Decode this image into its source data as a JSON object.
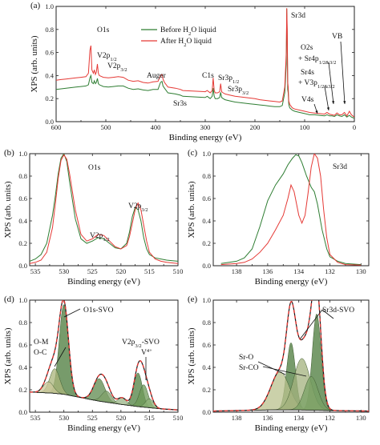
{
  "chart_data": [
    {
      "panel": "(a)",
      "type": "line",
      "xlabel": "Binding energy (eV)",
      "ylabel": "XPS (arb. units)",
      "xlim": [
        600,
        0
      ],
      "ylim": [
        0.0,
        1.0
      ],
      "xticks": [
        "600",
        "500",
        "400",
        "300",
        "200",
        "100",
        "0"
      ],
      "yticks": [
        "0.0",
        "0.2",
        "0.4",
        "0.6",
        "0.8",
        "1.0"
      ],
      "legend": {
        "placement": "top-center",
        "entries": [
          "Before H₂O liquid",
          "After H₂O liquid"
        ]
      },
      "annotations": [
        "O1s",
        "V2p1/2",
        "V2p3/2",
        "Auger",
        "Sr3s",
        "C1s",
        "Sr3p1/2",
        "Sr3p3/2",
        "Sr3d",
        "O2s + Sr4p1/2&3/2",
        "Sr4s + V3p1/2&3/2",
        "V4s",
        "VB"
      ],
      "series": [
        {
          "name": "Before H₂O liquid",
          "color": "#2e7d32",
          "x": [
            600,
            590,
            580,
            570,
            560,
            550,
            540,
            535,
            532,
            530,
            528,
            525,
            523,
            521,
            519,
            517,
            515,
            513,
            505,
            495,
            485,
            475,
            465,
            455,
            445,
            435,
            425,
            415,
            405,
            395,
            390,
            387,
            385,
            382,
            375,
            360,
            350,
            345,
            300,
            296,
            290,
            286,
            284,
            282,
            280,
            275,
            271,
            269,
            267,
            264,
            260,
            250,
            240,
            230,
            220,
            210,
            200,
            190,
            180,
            170,
            160,
            150,
            145,
            140,
            137,
            136,
            135,
            134,
            133,
            132,
            130,
            125,
            120,
            110,
            100,
            90,
            80,
            70,
            60,
            55,
            50,
            45,
            40,
            35,
            30,
            25,
            20,
            15,
            10,
            6,
            3,
            0
          ],
          "y": [
            0.28,
            0.285,
            0.29,
            0.295,
            0.3,
            0.305,
            0.31,
            0.32,
            0.38,
            0.4,
            0.34,
            0.33,
            0.355,
            0.33,
            0.34,
            0.375,
            0.33,
            0.32,
            0.305,
            0.3,
            0.305,
            0.31,
            0.31,
            0.29,
            0.28,
            0.285,
            0.275,
            0.27,
            0.28,
            0.28,
            0.34,
            0.35,
            0.31,
            0.29,
            0.25,
            0.24,
            0.23,
            0.22,
            0.21,
            0.22,
            0.2,
            0.22,
            0.29,
            0.22,
            0.2,
            0.2,
            0.21,
            0.255,
            0.21,
            0.2,
            0.19,
            0.18,
            0.17,
            0.165,
            0.16,
            0.155,
            0.15,
            0.145,
            0.14,
            0.135,
            0.13,
            0.13,
            0.14,
            0.25,
            0.5,
            0.98,
            0.72,
            0.28,
            0.25,
            0.15,
            0.12,
            0.1,
            0.09,
            0.08,
            0.07,
            0.06,
            0.06,
            0.055,
            0.05,
            0.06,
            0.05,
            0.05,
            0.045,
            0.06,
            0.05,
            0.045,
            0.06,
            0.04,
            0.055,
            0.04,
            0.035,
            0.03
          ]
        },
        {
          "name": "After H₂O liquid",
          "color": "#e53935",
          "x": [
            600,
            590,
            580,
            570,
            560,
            550,
            540,
            535,
            532,
            530,
            528,
            525,
            523,
            521,
            519,
            517,
            515,
            513,
            505,
            495,
            485,
            475,
            465,
            455,
            445,
            435,
            425,
            415,
            405,
            395,
            390,
            387,
            385,
            382,
            375,
            360,
            350,
            345,
            300,
            296,
            290,
            286,
            284,
            282,
            280,
            275,
            271,
            269,
            267,
            264,
            260,
            250,
            240,
            230,
            220,
            210,
            200,
            190,
            180,
            170,
            160,
            150,
            145,
            140,
            137,
            136,
            135,
            134,
            133,
            132,
            130,
            125,
            120,
            110,
            100,
            90,
            80,
            70,
            60,
            55,
            50,
            45,
            40,
            35,
            30,
            25,
            20,
            15,
            10,
            6,
            3,
            0
          ],
          "y": [
            0.36,
            0.365,
            0.37,
            0.375,
            0.38,
            0.385,
            0.39,
            0.42,
            0.62,
            0.66,
            0.45,
            0.42,
            0.45,
            0.41,
            0.43,
            0.5,
            0.42,
            0.4,
            0.385,
            0.38,
            0.385,
            0.39,
            0.385,
            0.36,
            0.35,
            0.355,
            0.34,
            0.335,
            0.345,
            0.35,
            0.4,
            0.41,
            0.37,
            0.34,
            0.3,
            0.29,
            0.28,
            0.27,
            0.26,
            0.27,
            0.25,
            0.27,
            0.38,
            0.27,
            0.25,
            0.25,
            0.26,
            0.33,
            0.26,
            0.25,
            0.24,
            0.23,
            0.22,
            0.215,
            0.21,
            0.205,
            0.2,
            0.19,
            0.185,
            0.18,
            0.175,
            0.17,
            0.18,
            0.3,
            0.6,
            0.985,
            0.8,
            0.34,
            0.3,
            0.18,
            0.15,
            0.12,
            0.11,
            0.1,
            0.09,
            0.08,
            0.075,
            0.07,
            0.065,
            0.08,
            0.065,
            0.06,
            0.055,
            0.075,
            0.06,
            0.06,
            0.08,
            0.05,
            0.09,
            0.06,
            0.05,
            0.04
          ]
        }
      ]
    },
    {
      "panel": "(b)",
      "type": "line",
      "xlabel": "Binding energy (eV)",
      "ylabel": "XPS (arb. units)",
      "xlim": [
        536,
        510
      ],
      "ylim": [
        0.0,
        1.0
      ],
      "xticks": [
        "535",
        "530",
        "525",
        "520",
        "515",
        "510"
      ],
      "yticks": [
        "0.0",
        "0.2",
        "0.4",
        "0.6",
        "0.8",
        "1.0"
      ],
      "annotations": [
        "O1s",
        "V2p3/2",
        "V2p1/2"
      ],
      "series": [
        {
          "name": "Before H₂O liquid",
          "color": "#2e7d32",
          "x": [
            536,
            535,
            534,
            533,
            532,
            531.5,
            531,
            530.5,
            530,
            529.5,
            529,
            528,
            527,
            526,
            525,
            524,
            523,
            522,
            521,
            520,
            519,
            518.5,
            518,
            517.5,
            517,
            516.5,
            516,
            515.5,
            515,
            514,
            513,
            512,
            511,
            510
          ],
          "y": [
            0.04,
            0.06,
            0.1,
            0.2,
            0.45,
            0.62,
            0.82,
            0.96,
            1.0,
            0.93,
            0.75,
            0.42,
            0.24,
            0.2,
            0.22,
            0.25,
            0.24,
            0.2,
            0.16,
            0.15,
            0.2,
            0.3,
            0.44,
            0.52,
            0.5,
            0.4,
            0.25,
            0.15,
            0.1,
            0.07,
            0.06,
            0.05,
            0.045,
            0.04
          ]
        },
        {
          "name": "After H₂O liquid",
          "color": "#e53935",
          "x": [
            536,
            535,
            534,
            533,
            532,
            531.5,
            531,
            530.5,
            530,
            529.5,
            529,
            528,
            527,
            526,
            525,
            524,
            523,
            522,
            521,
            520,
            519,
            518.5,
            518,
            517.5,
            517,
            516.5,
            516,
            515.5,
            515,
            514,
            513,
            512,
            511,
            510
          ],
          "y": [
            0.02,
            0.03,
            0.05,
            0.12,
            0.34,
            0.55,
            0.78,
            0.94,
            0.99,
            0.95,
            0.82,
            0.5,
            0.28,
            0.22,
            0.24,
            0.28,
            0.27,
            0.22,
            0.17,
            0.15,
            0.18,
            0.26,
            0.38,
            0.5,
            0.56,
            0.5,
            0.36,
            0.22,
            0.12,
            0.06,
            0.04,
            0.03,
            0.025,
            0.02
          ]
        }
      ]
    },
    {
      "panel": "(c)",
      "type": "line",
      "xlabel": "Binding energy (eV)",
      "ylabel": "XPS (arb. units)",
      "xlim": [
        139.5,
        129.5
      ],
      "ylim": [
        0.0,
        1.0
      ],
      "xticks": [
        "138",
        "136",
        "134",
        "132",
        "130"
      ],
      "yticks": [
        "0.0",
        "0.2",
        "0.4",
        "0.6",
        "0.8",
        "1.0"
      ],
      "annotations": [
        "Sr3d"
      ],
      "series": [
        {
          "name": "Before H₂O liquid",
          "color": "#2e7d32",
          "x": [
            139,
            138,
            137.5,
            137,
            136.5,
            136,
            135.5,
            135,
            134.7,
            134.4,
            134.2,
            134,
            133.8,
            133.5,
            133.2,
            133,
            132.8,
            132.5,
            132.2,
            132,
            131.5,
            131,
            130
          ],
          "y": [
            0.02,
            0.04,
            0.07,
            0.15,
            0.35,
            0.58,
            0.72,
            0.82,
            0.9,
            0.96,
            0.99,
            0.98,
            0.92,
            0.8,
            0.7,
            0.66,
            0.55,
            0.32,
            0.15,
            0.08,
            0.04,
            0.02,
            0.01
          ]
        },
        {
          "name": "After H₂O liquid",
          "color": "#e53935",
          "x": [
            139,
            138,
            137.5,
            137,
            136.5,
            136,
            135.5,
            135,
            134.7,
            134.5,
            134.3,
            134,
            133.8,
            133.6,
            133.4,
            133.2,
            133,
            132.8,
            132.6,
            132.4,
            132.2,
            132,
            131.5,
            131,
            130
          ],
          "y": [
            0.01,
            0.02,
            0.03,
            0.06,
            0.12,
            0.2,
            0.32,
            0.45,
            0.6,
            0.72,
            0.66,
            0.45,
            0.38,
            0.45,
            0.65,
            0.88,
            1.0,
            0.96,
            0.8,
            0.5,
            0.25,
            0.1,
            0.03,
            0.01,
            0.005
          ]
        }
      ]
    },
    {
      "panel": "(d)",
      "type": "area",
      "xlabel": "Binding energy (eV)",
      "ylabel": "XPS (arb. units)",
      "xlim": [
        536,
        510
      ],
      "ylim": [
        0.0,
        1.0
      ],
      "xticks": [
        "535",
        "530",
        "525",
        "520",
        "515",
        "510"
      ],
      "yticks": [
        "0.0",
        "0.2",
        "0.4",
        "0.6",
        "0.8",
        "1.0"
      ],
      "annotations": [
        "O1s-SVO",
        "O-M",
        "O-C",
        "V2p3/2-SVO",
        "V4+"
      ],
      "background": {
        "x": [
          536,
          532,
          530,
          528,
          524,
          520,
          517,
          515,
          513,
          510
        ],
        "y": [
          0.18,
          0.17,
          0.16,
          0.14,
          0.1,
          0.07,
          0.05,
          0.04,
          0.03,
          0.02
        ]
      },
      "peaks": [
        {
          "center": 530.0,
          "height": 0.8,
          "width": 1.3,
          "color": "#4a7a3a"
        },
        {
          "center": 531.6,
          "height": 0.22,
          "width": 1.4,
          "color": "#a9b47a"
        },
        {
          "center": 532.7,
          "height": 0.1,
          "width": 1.4,
          "color": "#c9c79a"
        },
        {
          "center": 523.8,
          "height": 0.2,
          "width": 1.6,
          "color": "#5e8a4e"
        },
        {
          "center": 522.5,
          "height": 0.1,
          "width": 1.4,
          "color": "#7fa06a"
        },
        {
          "center": 517.0,
          "height": 0.3,
          "width": 1.2,
          "color": "#4f8040"
        },
        {
          "center": 516.0,
          "height": 0.2,
          "width": 1.2,
          "color": "#6e9a58"
        },
        {
          "center": 515.0,
          "height": 0.08,
          "width": 1.1,
          "color": "#8db178"
        },
        {
          "center": 519.8,
          "height": 0.06,
          "width": 1.2,
          "color": "#9ab486"
        }
      ]
    },
    {
      "panel": "(e)",
      "type": "area",
      "xlabel": "Binding energy (eV)",
      "ylabel": "XPS (arb. units)",
      "xlim": [
        139.5,
        129.5
      ],
      "ylim": [
        0.0,
        1.0
      ],
      "xticks": [
        "138",
        "136",
        "134",
        "132",
        "130"
      ],
      "yticks": [
        "0.0",
        "0.2",
        "0.4",
        "0.6",
        "0.8",
        "1.0"
      ],
      "annotations": [
        "Sr3d-SVO",
        "Sr-O",
        "Sr-CO"
      ],
      "background": {
        "x": [
          139.5,
          136,
          134,
          132,
          129.5
        ],
        "y": [
          0.01,
          0.02,
          0.02,
          0.015,
          0.01
        ]
      },
      "peaks": [
        {
          "center": 134.5,
          "height": 0.6,
          "width": 0.45,
          "color": "#4a7a3a"
        },
        {
          "center": 132.85,
          "height": 0.86,
          "width": 0.45,
          "color": "#4a7a3a"
        },
        {
          "center": 135.2,
          "height": 0.34,
          "width": 0.95,
          "color": "#b9c28e"
        },
        {
          "center": 133.8,
          "height": 0.46,
          "width": 0.85,
          "color": "#a3b27e"
        },
        {
          "center": 133.2,
          "height": 0.3,
          "width": 0.7,
          "color": "#78a064"
        }
      ]
    }
  ]
}
